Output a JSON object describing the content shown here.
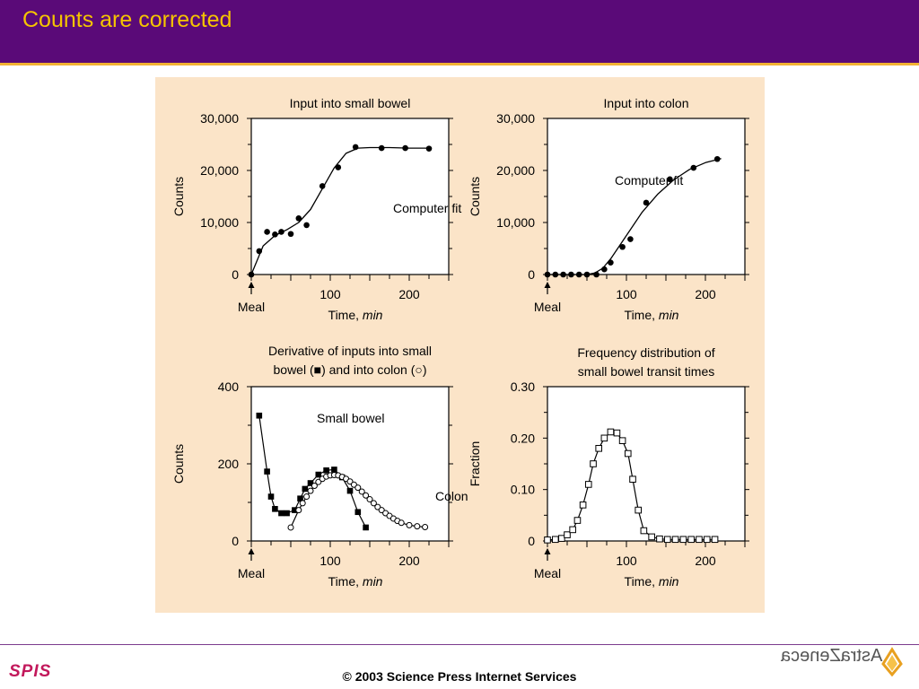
{
  "slide": {
    "title": "Counts are corrected",
    "copyright": "© 2003 Science Press Internet Services",
    "left_logo": "SPIS",
    "right_logo": "AstraZeneca"
  },
  "colors": {
    "header": "#5a0a78",
    "title": "#f5c400",
    "accent_line": "#f2b233",
    "figure_bg": "#fbe4c8",
    "spis": "#c2185b"
  },
  "icons": [
    "astrazeneca-logo-icon"
  ],
  "chart_data": [
    {
      "type": "scatter",
      "title": "Input into small bowel",
      "xlabel": "Time, min",
      "ylabel": "Counts",
      "xlim": [
        0,
        250
      ],
      "ylim": [
        0,
        30000
      ],
      "xticks": [
        100,
        200
      ],
      "yticks": [
        0,
        10000,
        20000,
        30000
      ],
      "ytick_labels": [
        "0",
        "10,000",
        "20,000",
        "30,000"
      ],
      "series": [
        {
          "marker": "filled-circle",
          "x": [
            0,
            10,
            20,
            30,
            38,
            50,
            60,
            70,
            90,
            110,
            132,
            165,
            195,
            225
          ],
          "y": [
            0,
            4500,
            8200,
            7700,
            8200,
            7800,
            10800,
            9500,
            17000,
            20600,
            24500,
            24300,
            24300,
            24200
          ]
        },
        {
          "kind": "fit",
          "x": [
            0,
            15,
            30,
            45,
            60,
            75,
            90,
            105,
            120,
            135,
            150,
            175,
            200,
            225
          ],
          "y": [
            0,
            5500,
            7500,
            8600,
            10000,
            12500,
            16500,
            20500,
            23300,
            24300,
            24400,
            24400,
            24300,
            24300
          ]
        }
      ],
      "annotations": [
        "Computer fit",
        "Meal"
      ]
    },
    {
      "type": "scatter",
      "title": "Input into colon",
      "xlabel": "Time, min",
      "ylabel": "Counts",
      "xlim": [
        0,
        250
      ],
      "ylim": [
        0,
        30000
      ],
      "xticks": [
        100,
        200
      ],
      "yticks": [
        0,
        10000,
        20000,
        30000
      ],
      "ytick_labels": [
        "0",
        "10,000",
        "20,000",
        "30,000"
      ],
      "series": [
        {
          "marker": "filled-circle",
          "x": [
            0,
            10,
            20,
            30,
            40,
            50,
            62,
            72,
            80,
            95,
            105,
            125,
            155,
            185,
            215
          ],
          "y": [
            0,
            0,
            0,
            0,
            0,
            0,
            0,
            1000,
            2300,
            5300,
            6800,
            13800,
            18300,
            20500,
            22200
          ]
        },
        {
          "kind": "fit",
          "x": [
            0,
            50,
            60,
            70,
            80,
            100,
            120,
            140,
            160,
            180,
            200,
            220
          ],
          "y": [
            0,
            0,
            300,
            1200,
            3000,
            7500,
            12000,
            15500,
            18200,
            20200,
            21500,
            22300
          ]
        }
      ],
      "annotations": [
        "Computer fit",
        "Meal"
      ]
    },
    {
      "type": "line",
      "title": "Derivative of inputs into small bowel (■) and into colon (○)",
      "xlabel": "Time, min",
      "ylabel": "Counts",
      "xlim": [
        0,
        250
      ],
      "ylim": [
        0,
        400
      ],
      "xticks": [
        100,
        200
      ],
      "yticks": [
        0,
        200,
        400
      ],
      "ytick_labels": [
        "0",
        "200",
        "400"
      ],
      "series": [
        {
          "name": "Small bowel",
          "marker": "filled-square",
          "x": [
            10,
            20,
            25,
            30,
            38,
            45,
            55,
            62,
            68,
            75,
            85,
            95,
            105,
            115,
            125,
            135,
            145
          ],
          "y": [
            325,
            180,
            115,
            83,
            72,
            72,
            80,
            110,
            135,
            150,
            172,
            183,
            185,
            165,
            130,
            75,
            35
          ]
        },
        {
          "name": "Colon",
          "marker": "open-circle",
          "x": [
            50,
            60,
            65,
            70,
            75,
            80,
            85,
            90,
            95,
            100,
            105,
            110,
            115,
            120,
            125,
            130,
            135,
            140,
            145,
            150,
            155,
            160,
            165,
            170,
            175,
            180,
            185,
            190,
            200,
            210,
            220
          ],
          "y": [
            35,
            80,
            98,
            115,
            130,
            143,
            153,
            161,
            167,
            170,
            171,
            170,
            166,
            161,
            154,
            146,
            138,
            128,
            118,
            108,
            98,
            88,
            80,
            72,
            65,
            58,
            52,
            47,
            41,
            38,
            36
          ]
        }
      ],
      "annotations": [
        "Small bowel",
        "Colon",
        "Meal"
      ]
    },
    {
      "type": "line",
      "title": "Frequency distribution of small bowel transit times",
      "xlabel": "Time, min",
      "ylabel": "Fraction",
      "xlim": [
        0,
        250
      ],
      "ylim": [
        0,
        0.3
      ],
      "xticks": [
        100,
        200
      ],
      "yticks": [
        0,
        0.1,
        0.2,
        0.3
      ],
      "ytick_labels": [
        "0",
        "0.10",
        "0.20",
        "0.30"
      ],
      "series": [
        {
          "marker": "open-square",
          "x": [
            0,
            10,
            18,
            25,
            32,
            38,
            45,
            52,
            58,
            65,
            72,
            80,
            88,
            95,
            102,
            108,
            115,
            122,
            132,
            142,
            152,
            162,
            172,
            182,
            192,
            202,
            212
          ],
          "y": [
            0.002,
            0.003,
            0.005,
            0.012,
            0.022,
            0.04,
            0.07,
            0.11,
            0.15,
            0.18,
            0.2,
            0.212,
            0.21,
            0.195,
            0.17,
            0.12,
            0.06,
            0.02,
            0.008,
            0.004,
            0.003,
            0.003,
            0.003,
            0.003,
            0.003,
            0.003,
            0.003
          ]
        }
      ],
      "annotations": [
        "Meal"
      ]
    }
  ]
}
